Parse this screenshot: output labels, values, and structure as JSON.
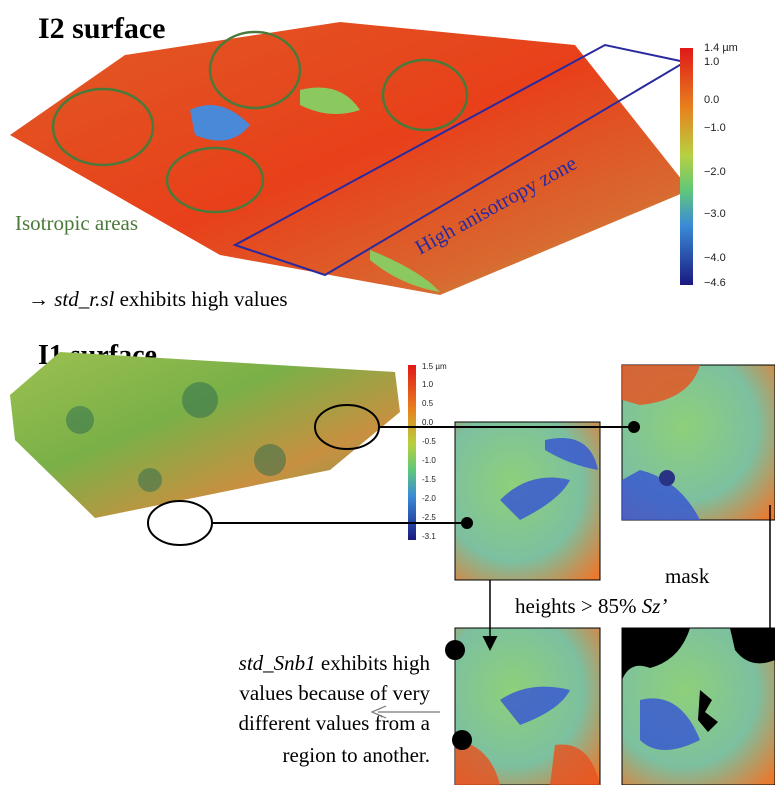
{
  "i2": {
    "title": "I2 surface",
    "isotropic_label": "Isotropic areas",
    "zone_label": "High anisotropy zone",
    "note": {
      "arrow": "→",
      "variable": "std_r.sl",
      "rest": "exhibits high values"
    },
    "colorbar": [
      "1.4 µm",
      "1.0",
      "0.0",
      "−1.0",
      "−2.0",
      "−3.0",
      "−4.0",
      "−4.6"
    ]
  },
  "i1": {
    "title": "I1 surface",
    "colorbar": [
      "1.5 µm",
      "1.0",
      "0.5",
      "0.0",
      "-0.5",
      "-1.0",
      "-1.5",
      "-2.0",
      "-2.5",
      "-3.1"
    ],
    "mask_label": "mask",
    "threshold": {
      "text": "heights > 85% ",
      "variable": "Sz’"
    },
    "conclusion": {
      "variable": "std_Snb1",
      "lines": [
        " exhibits high",
        "values because of very",
        "different values from a",
        "region to another."
      ]
    }
  }
}
